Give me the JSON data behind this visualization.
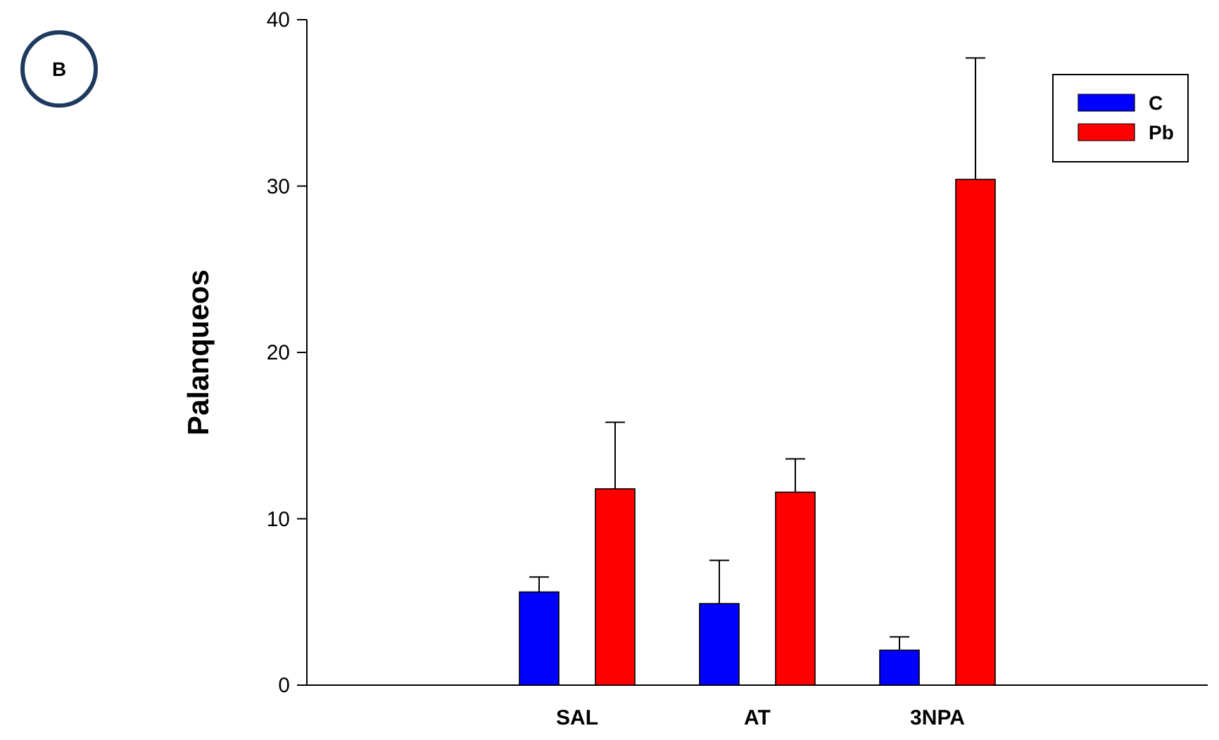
{
  "chart_data": {
    "type": "bar",
    "ylabel": "Palanqueos",
    "categories": [
      null,
      "SAL",
      "AT",
      "3NPA",
      null
    ],
    "series": [
      {
        "name": "C",
        "color": "#0000ff",
        "values": [
          null,
          5.6,
          4.9,
          2.1,
          null
        ],
        "errors": [
          null,
          [
            5.6,
            6.5
          ],
          [
            4.9,
            7.5
          ],
          [
            2.1,
            2.9
          ],
          null
        ]
      },
      {
        "name": "Pb",
        "color": "#ff0000",
        "values": [
          null,
          11.8,
          11.6,
          30.4,
          null
        ],
        "errors": [
          null,
          [
            11.8,
            15.8
          ],
          [
            11.6,
            13.6
          ],
          [
            30.4,
            37.7
          ],
          null
        ]
      }
    ],
    "ylim": [
      0,
      40
    ],
    "yticks": [
      0,
      10,
      20,
      30,
      40
    ],
    "legend": "top right",
    "annotations": [
      "B"
    ]
  }
}
